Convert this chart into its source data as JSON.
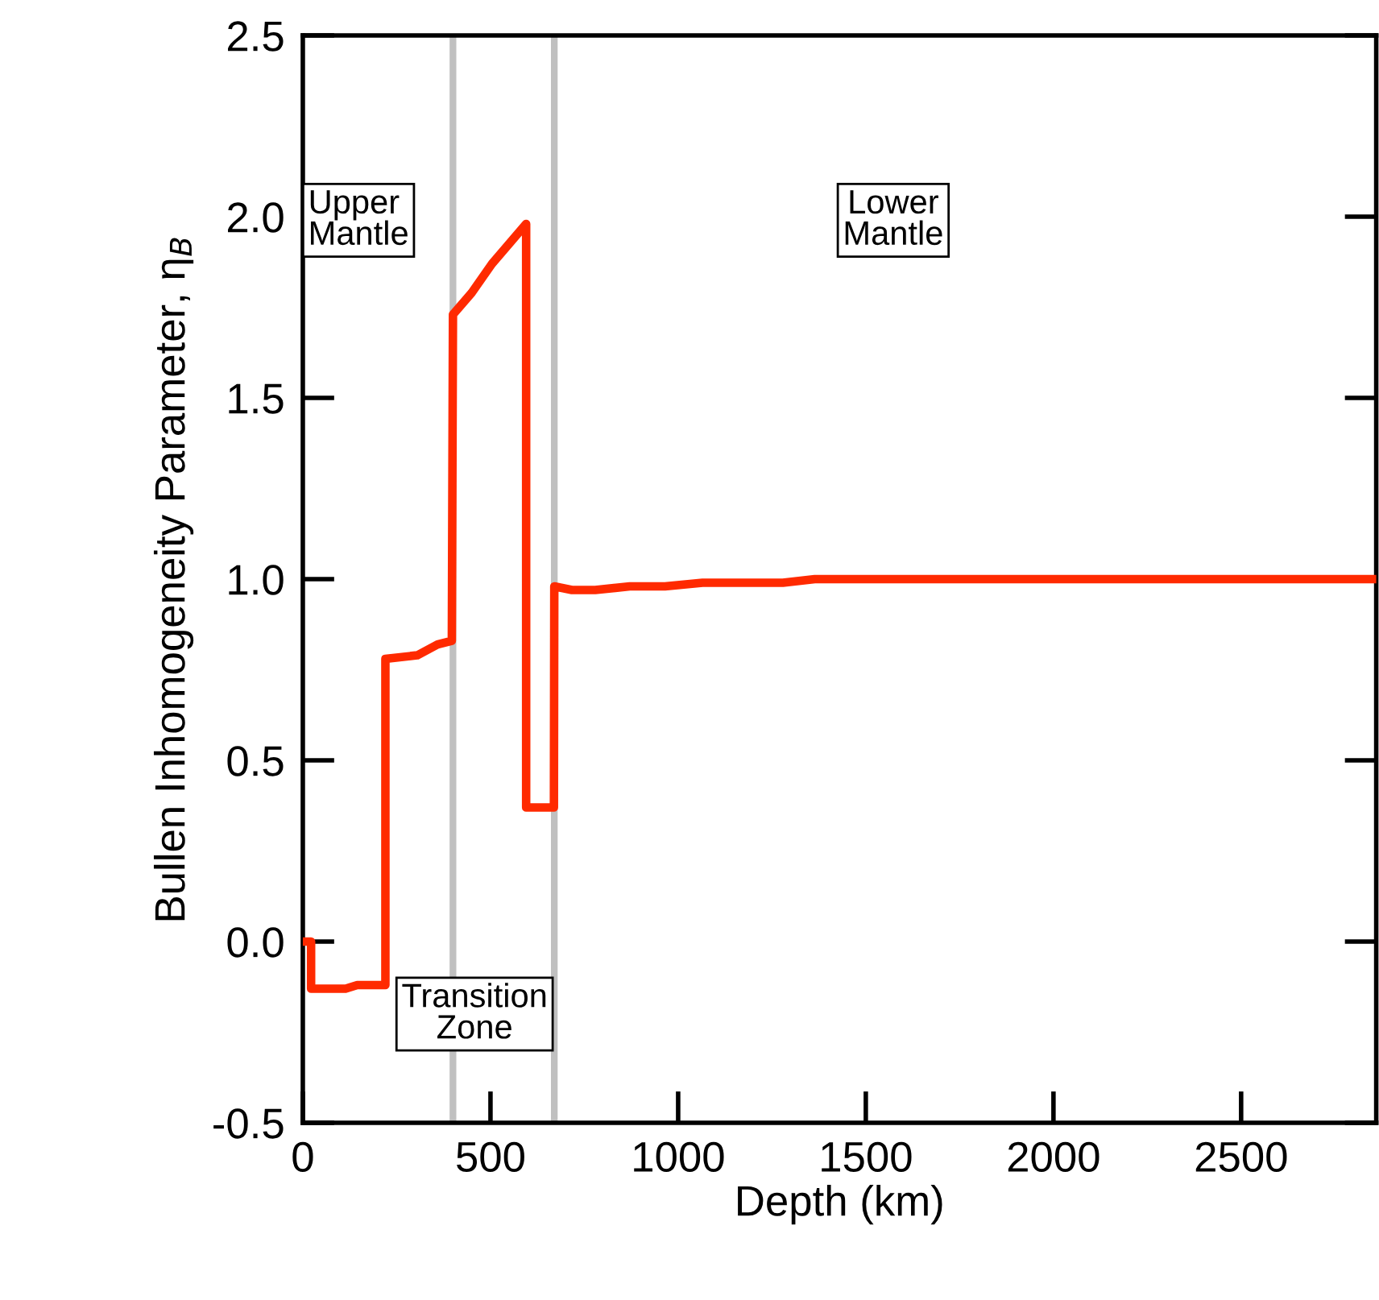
{
  "chart_data": {
    "type": "line",
    "xlabel": "Depth (km)",
    "ylabel": "Bullen Inhomogeneity Parameter, η$_{B}$",
    "xlim": [
      0,
      2860
    ],
    "xticks": [
      0,
      500,
      1000,
      1500,
      2000,
      2500
    ],
    "ylim": [
      -0.5,
      2.5
    ],
    "yticks": [
      {
        "value": -0.5,
        "label": "-0.5"
      },
      {
        "value": 0,
        "label": "0.0"
      },
      {
        "value": 0.5,
        "label": "0.5"
      },
      {
        "value": 1,
        "label": "1.0"
      },
      {
        "value": 1.5,
        "label": "1.5"
      },
      {
        "value": 2,
        "label": "2.0"
      },
      {
        "value": 2.5,
        "label": "2.5"
      }
    ],
    "grid": false,
    "legend": false,
    "marker": "none",
    "line_style": "solid",
    "series": [
      {
        "color": "#ff2a00",
        "x": [
          0,
          22,
          22,
          114,
          145,
          220,
          220,
          305,
          359,
          397,
          400,
          450,
          504,
          595,
          595,
          669,
          670,
          717,
          779,
          871,
          965,
          1065,
          1279,
          1364,
          2860
        ],
        "values": [
          0.0,
          0.0,
          -0.13,
          -0.13,
          -0.12,
          -0.12,
          0.78,
          0.79,
          0.82,
          0.83,
          1.73,
          1.79,
          1.87,
          1.98,
          0.37,
          0.37,
          0.98,
          0.97,
          0.97,
          0.98,
          0.98,
          0.99,
          0.99,
          1.0,
          1.0
        ]
      }
    ],
    "ref_lines": [
      {
        "axis": "x",
        "value": 400,
        "color": "#c0c0c0"
      },
      {
        "axis": "x",
        "value": 670,
        "color": "#c0c0c0"
      }
    ],
    "annotations": [
      "Upper\nMantle",
      "Transition\nZone",
      "Lower\nMantle"
    ]
  }
}
